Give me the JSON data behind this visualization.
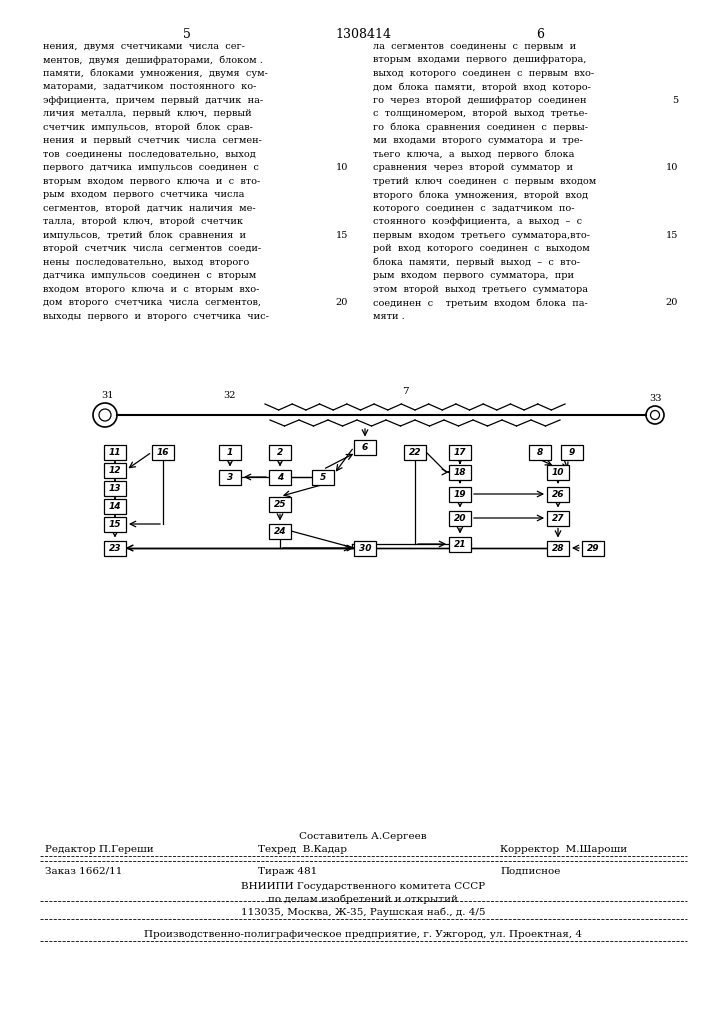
{
  "page_number_left": "5",
  "patent_number": "1308414",
  "page_number_right": "6",
  "footer_compositor": "Составитель А.Сергеев",
  "footer_editor": "Редактор П.Гереши",
  "footer_techred": "Техред  В.Кадар",
  "footer_corrector": "Корректор  М.Шароши",
  "footer_order": "Заказ 1662/11",
  "footer_tirazh": "Тираж 481",
  "footer_subscription": "Подписное",
  "footer_vnipi": "ВНИИПИ Государственного комитета СССР",
  "footer_affairs": "по делам изобретений и открытий",
  "footer_address": "113035, Москва, Ж-35, Раушская наб., д. 4/5",
  "footer_production": "Производственно-полиграфическое предприятие, г. Ужгород, ул. Проектная, 4",
  "bg_color": "#ffffff",
  "text_color": "#000000"
}
